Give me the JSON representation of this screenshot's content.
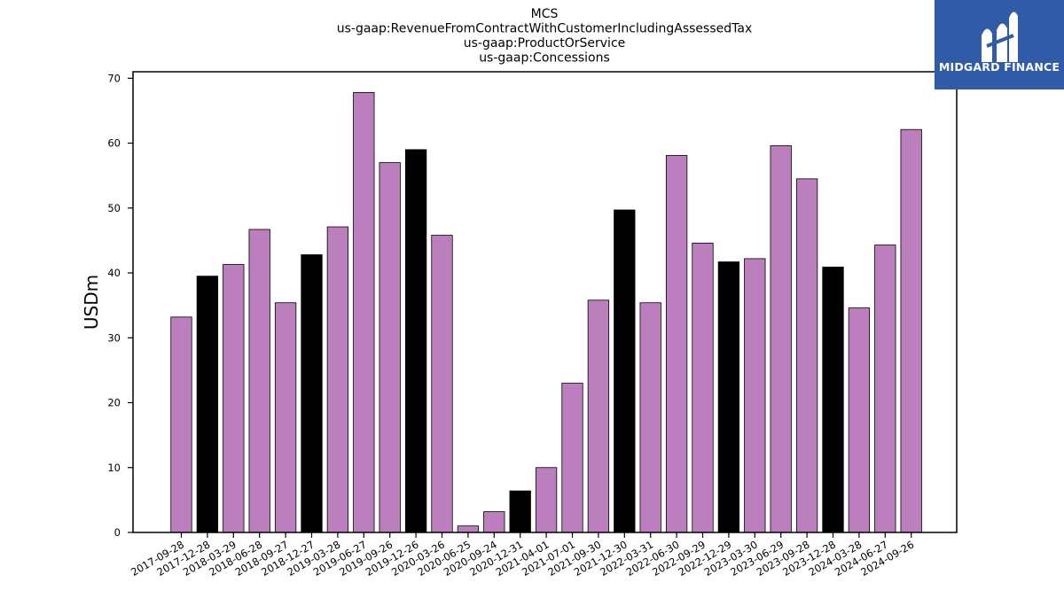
{
  "chart_data": {
    "type": "bar",
    "title_lines": [
      "MCS",
      "us-gaap:RevenueFromContractWithCustomerIncludingAssessedTax",
      "us-gaap:ProductOrService",
      "us-gaap:Concessions"
    ],
    "xlabel": "",
    "ylabel": "USDm",
    "ylim": [
      0,
      71
    ],
    "yticks": [
      0,
      10,
      20,
      30,
      40,
      50,
      60,
      70
    ],
    "grid": false,
    "categories": [
      "2017-09-28",
      "2017-12-28",
      "2018-03-29",
      "2018-06-28",
      "2018-09-27",
      "2018-12-27",
      "2019-03-28",
      "2019-06-27",
      "2019-09-26",
      "2019-12-26",
      "2020-03-26",
      "2020-06-25",
      "2020-09-24",
      "2020-12-31",
      "2021-04-01",
      "2021-07-01",
      "2021-09-30",
      "2021-12-30",
      "2022-03-31",
      "2022-06-30",
      "2022-09-29",
      "2022-12-29",
      "2023-03-30",
      "2023-06-29",
      "2023-09-28",
      "2023-12-28",
      "2024-03-28",
      "2024-06-27",
      "2024-09-26"
    ],
    "values": [
      33.2,
      39.5,
      41.3,
      46.7,
      35.4,
      42.8,
      47.1,
      67.8,
      57.0,
      59.0,
      45.8,
      1.0,
      3.2,
      6.4,
      10.0,
      23.0,
      35.8,
      49.7,
      35.4,
      58.1,
      44.6,
      41.7,
      42.2,
      59.6,
      54.5,
      40.9,
      34.6,
      44.3,
      62.1
    ],
    "highlighted": [
      false,
      true,
      false,
      false,
      false,
      true,
      false,
      false,
      false,
      true,
      false,
      false,
      false,
      true,
      false,
      false,
      false,
      true,
      false,
      false,
      false,
      true,
      false,
      false,
      false,
      true,
      false,
      false,
      false
    ],
    "colors": {
      "normal": "#bb7fbd",
      "highlight": "#000000",
      "edge": "#000000"
    }
  },
  "logo": {
    "text": "MIDGARD FINANCE"
  }
}
